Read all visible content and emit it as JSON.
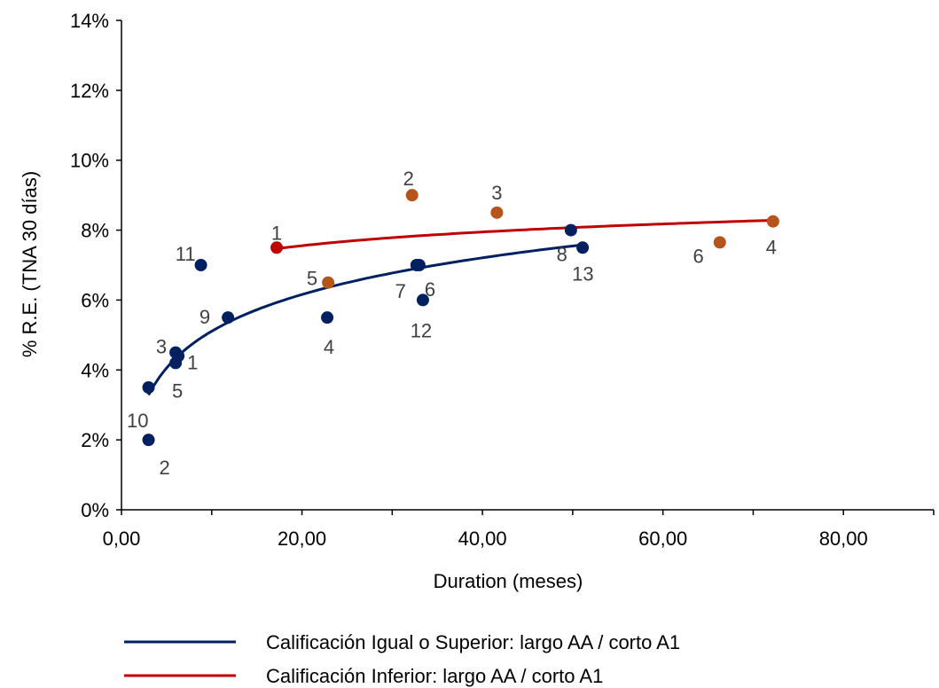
{
  "chart_data": {
    "type": "scatter",
    "xlabel": "Duration (meses)",
    "ylabel": "% R.E. (TNA 30 días)",
    "xlim": [
      0,
      90
    ],
    "ylim": [
      0,
      14
    ],
    "x_ticks": [
      "0,00",
      "20,00",
      "40,00",
      "60,00",
      "80,00"
    ],
    "x_tick_values": [
      0,
      20,
      40,
      60,
      80
    ],
    "y_ticks": [
      "0%",
      "2%",
      "4%",
      "6%",
      "8%",
      "10%",
      "12%",
      "14%"
    ],
    "y_tick_values": [
      0,
      2,
      4,
      6,
      8,
      10,
      12,
      14
    ],
    "legend_position": "bottom",
    "series": [
      {
        "name": "Calificación Igual o Superior: largo AA / corto A1",
        "line_color": "#002060",
        "point_color": "#002060",
        "points": [
          {
            "x": 6.3,
            "y": 4.4,
            "label": "1"
          },
          {
            "x": 3.0,
            "y": 2.0,
            "label": "2"
          },
          {
            "x": 6.0,
            "y": 4.5,
            "label": "3"
          },
          {
            "x": 22.8,
            "y": 5.5,
            "label": "4"
          },
          {
            "x": 6.0,
            "y": 4.2,
            "label": "5"
          },
          {
            "x": 33.0,
            "y": 7.0,
            "label": "6"
          },
          {
            "x": 32.7,
            "y": 7.0,
            "label": "7"
          },
          {
            "x": 49.8,
            "y": 8.0,
            "label": "8"
          },
          {
            "x": 11.8,
            "y": 5.5,
            "label": "9"
          },
          {
            "x": 3.0,
            "y": 3.5,
            "label": "10"
          },
          {
            "x": 8.8,
            "y": 7.0,
            "label": "11"
          },
          {
            "x": 33.4,
            "y": 6.0,
            "label": "12"
          },
          {
            "x": 51.1,
            "y": 7.5,
            "label": "13"
          }
        ],
        "trendline": {
          "type": "logarithmic",
          "a": 1.62,
          "b": 1.515,
          "x_range": [
            3.0,
            51.1
          ]
        }
      },
      {
        "name": "Calificación Inferior: largo AA / corto A1",
        "line_color": "#C00000",
        "point_color": "#B5541B",
        "points": [
          {
            "x": 17.2,
            "y": 7.5,
            "label": "1",
            "color": "#C00000"
          },
          {
            "x": 32.2,
            "y": 9.0,
            "label": "2"
          },
          {
            "x": 41.6,
            "y": 8.5,
            "label": "3"
          },
          {
            "x": 72.2,
            "y": 8.25,
            "label": "4"
          },
          {
            "x": 22.9,
            "y": 6.5,
            "label": "5"
          },
          {
            "x": 66.3,
            "y": 7.65,
            "label": "6"
          }
        ],
        "trendline": {
          "type": "logarithmic",
          "a": 5.86,
          "b": 0.5658,
          "x_range": [
            17.2,
            72.2
          ]
        }
      }
    ]
  }
}
